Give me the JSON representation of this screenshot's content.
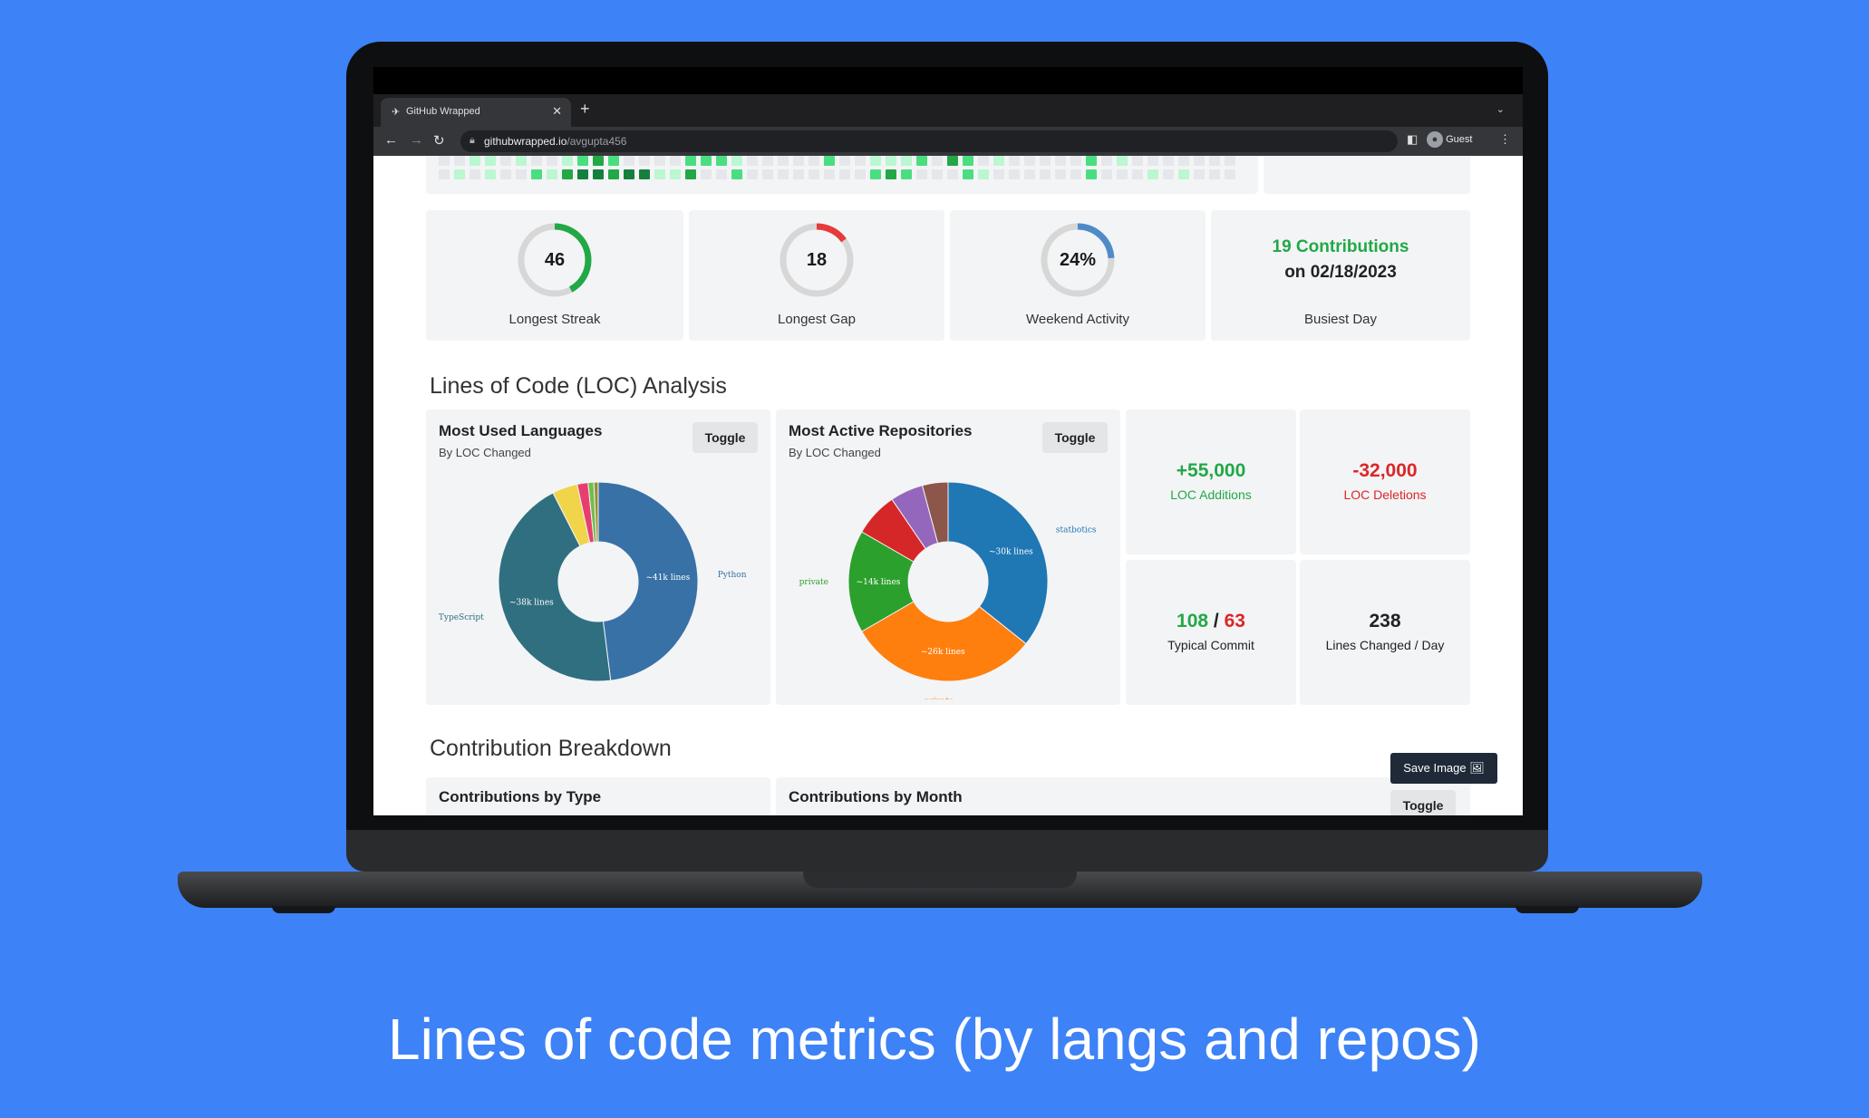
{
  "browser": {
    "tab_title": "GitHub Wrapped",
    "url_host": "githubwrapped.io",
    "url_path": "/avgupta456",
    "profile": "Guest",
    "favicon": "rocket-icon"
  },
  "stats_rings": [
    {
      "value": "46",
      "label": "Longest Streak",
      "fraction": 0.42,
      "color": "#22a846"
    },
    {
      "value": "18",
      "label": "Longest Gap",
      "fraction": 0.15,
      "color": "#e63b3b"
    },
    {
      "value": "24%",
      "label": "Weekend Activity",
      "fraction": 0.24,
      "color": "#4f8bc9"
    }
  ],
  "busiest_day": {
    "line1": "19 Contributions",
    "line2": "on 02/18/2023",
    "label": "Busiest Day"
  },
  "loc_section": {
    "heading": "Lines of Code (LOC) Analysis",
    "languages": {
      "title": "Most Used Languages",
      "subtitle": "By LOC Changed",
      "toggle": "Toggle",
      "slices": [
        {
          "name": "Python",
          "value": 41,
          "label": "~41k lines",
          "color": "#3871a6"
        },
        {
          "name": "TypeScript",
          "value": 38,
          "label": "~38k lines",
          "color": "#2f6f80"
        },
        {
          "name": "",
          "value": 3.5,
          "label": "",
          "color": "#f0d44a"
        },
        {
          "name": "",
          "value": 1.5,
          "label": "",
          "color": "#e83e6f"
        },
        {
          "name": "",
          "value": 0.8,
          "label": "",
          "color": "#6fbf4a"
        },
        {
          "name": "",
          "value": 0.6,
          "label": "",
          "color": "#9b8e3a"
        }
      ]
    },
    "repositories": {
      "title": "Most Active Repositories",
      "subtitle": "By LOC Changed",
      "toggle": "Toggle",
      "slices": [
        {
          "name": "statbotics",
          "value": 30,
          "label": "~30k lines",
          "color": "#1f77b4"
        },
        {
          "name": "private",
          "value": 26,
          "label": "~26k lines",
          "color": "#ff7f0e"
        },
        {
          "name": "private",
          "value": 14,
          "label": "~14k lines",
          "color": "#2ca02c"
        },
        {
          "name": "",
          "value": 6,
          "label": "",
          "color": "#d62728"
        },
        {
          "name": "",
          "value": 4.5,
          "label": "",
          "color": "#9467bd"
        },
        {
          "name": "",
          "value": 3.5,
          "label": "",
          "color": "#8c564b"
        }
      ]
    },
    "additions": {
      "value": "+55,000",
      "label": "LOC Additions"
    },
    "deletions": {
      "value": "-32,000",
      "label": "LOC Deletions"
    },
    "typical_commit": {
      "add": "108",
      "sep": " / ",
      "del": "63",
      "label": "Typical Commit"
    },
    "lines_per_day": {
      "value": "238",
      "label": "Lines Changed / Day"
    }
  },
  "breakdown": {
    "heading": "Contribution Breakdown",
    "by_type": "Contributions by Type",
    "by_month": "Contributions by Month",
    "toggle": "Toggle",
    "save_image": "Save Image"
  },
  "caption": "Lines of code metrics (by langs and repos)"
}
